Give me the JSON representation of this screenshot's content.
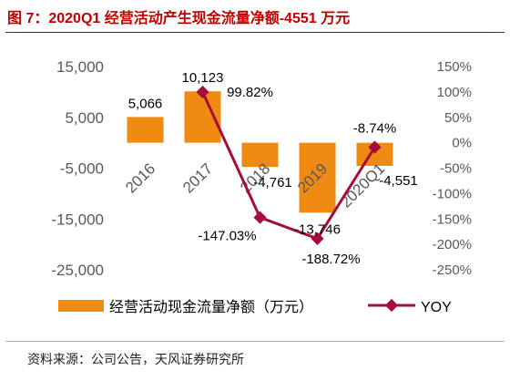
{
  "title": "图 7：2020Q1 经营活动产生现金流量净额-4551 万元",
  "source": "资料来源：公司公告，天风证券研究所",
  "colors": {
    "bar": "#ef8a12",
    "line": "#a50d3a",
    "title": "#c00000"
  },
  "chart_data": {
    "type": "bar+line",
    "categories": [
      "2016",
      "2017",
      "2018",
      "2019",
      "2020Q1"
    ],
    "series": [
      {
        "name": "经营活动现金流量净额（万元）",
        "type": "bar",
        "axis": "left",
        "values": [
          5066,
          10123,
          -4761,
          -13746,
          -4551
        ],
        "labels": [
          "5,066",
          "10,123",
          "-4,761",
          "-13,746",
          "-4,551"
        ]
      },
      {
        "name": "YOY",
        "type": "line",
        "axis": "right",
        "values": [
          null,
          99.82,
          -147.03,
          -188.72,
          -8.74
        ],
        "labels": [
          "",
          "99.82%",
          "-147.03%",
          "-188.72%",
          "-8.74%"
        ]
      }
    ],
    "left_axis": {
      "ylim": [
        -25000,
        15000
      ],
      "ticks": [
        "15,000",
        "5,000",
        "-5,000",
        "-15,000",
        "-25,000"
      ]
    },
    "right_axis": {
      "ylim": [
        -250,
        150
      ],
      "ticks": [
        "150%",
        "100%",
        "50%",
        "0%",
        "-50%",
        "-100%",
        "-150%",
        "-200%",
        "-250%"
      ]
    },
    "grid": false,
    "legend_position": "bottom"
  }
}
